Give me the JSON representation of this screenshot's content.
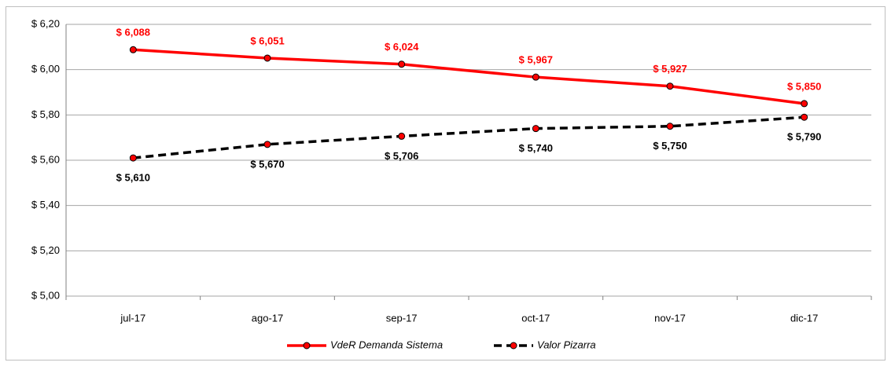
{
  "chart_data": {
    "type": "line",
    "categories": [
      "jul-17",
      "ago-17",
      "sep-17",
      "oct-17",
      "nov-17",
      "dic-17"
    ],
    "series": [
      {
        "name": "VdeR Demanda Sistema",
        "color": "#ff0000",
        "dash": false,
        "values": [
          6.088,
          6.051,
          6.024,
          5.967,
          5.927,
          5.85
        ],
        "value_labels": [
          "$ 6,088",
          "$ 6,051",
          "$ 6,024",
          "$ 5,967",
          "$ 5,927",
          "$ 5,850"
        ]
      },
      {
        "name": "Valor Pizarra",
        "color": "#000000",
        "dash": true,
        "values": [
          5.61,
          5.67,
          5.706,
          5.74,
          5.75,
          5.79
        ],
        "value_labels": [
          "$ 5,610",
          "$ 5,670",
          "$ 5,706",
          "$ 5,740",
          "$ 5,750",
          "$ 5,790"
        ]
      }
    ],
    "ylim": [
      5.0,
      6.2
    ],
    "yticks": [
      {
        "value": 5.0,
        "label": "$ 5,00"
      },
      {
        "value": 5.2,
        "label": "$ 5,20"
      },
      {
        "value": 5.4,
        "label": "$ 5,40"
      },
      {
        "value": 5.6,
        "label": "$ 5,60"
      },
      {
        "value": 5.8,
        "label": "$ 5,80"
      },
      {
        "value": 6.0,
        "label": "$ 6,00"
      },
      {
        "value": 6.2,
        "label": "$ 6,20"
      }
    ],
    "grid": true,
    "legend": "bottom"
  }
}
